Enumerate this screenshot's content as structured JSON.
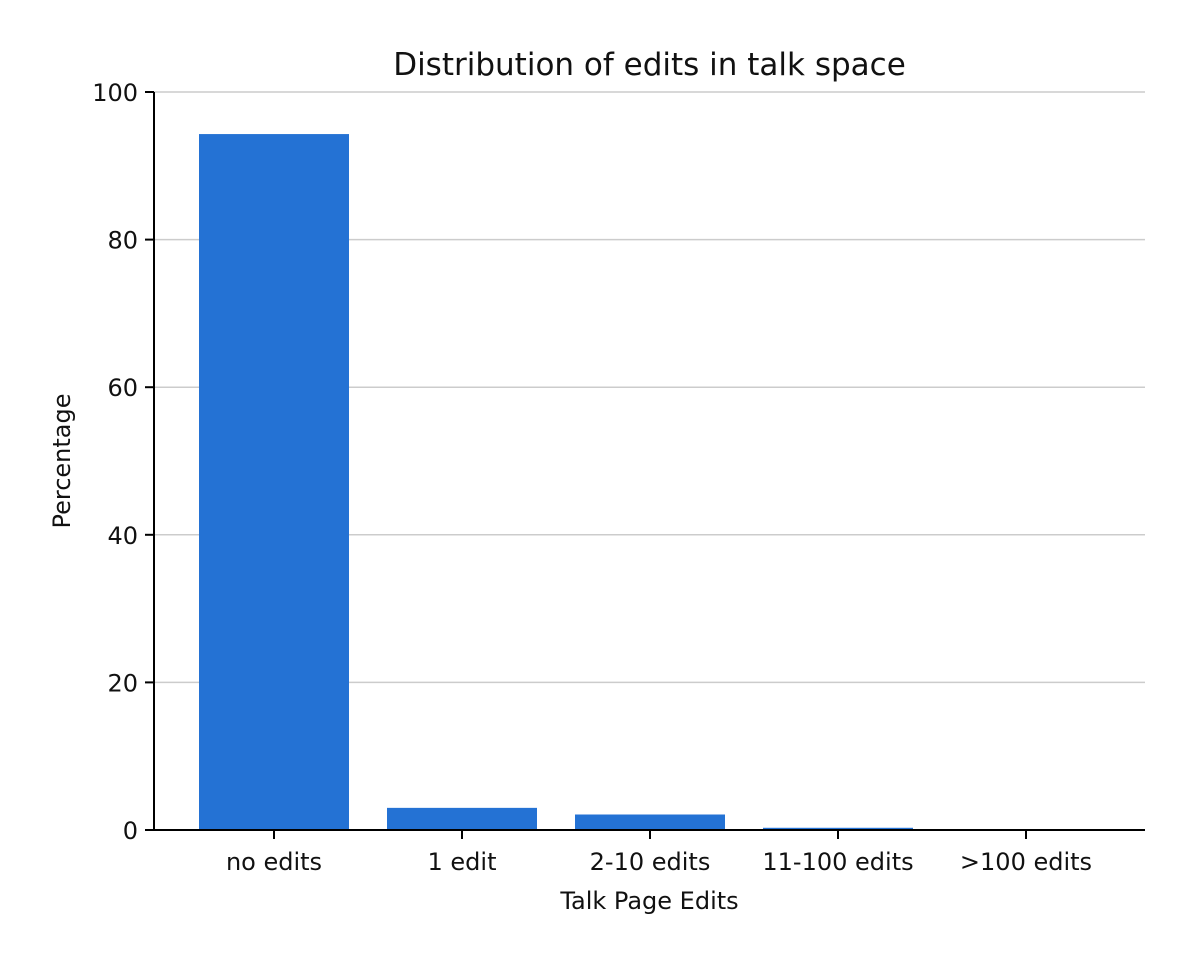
{
  "chart_data": {
    "type": "bar",
    "title": "Distribution of edits in talk space",
    "xlabel": "Talk Page Edits",
    "ylabel": "Percentage",
    "categories": [
      "no edits",
      "1 edit",
      "2-10 edits",
      "11-100 edits",
      ">100 edits"
    ],
    "values": [
      94.3,
      3.0,
      2.1,
      0.3,
      0.05
    ],
    "ylim": [
      0,
      100
    ],
    "yticks": [
      0,
      20,
      40,
      60,
      80,
      100
    ],
    "bar_color": "#2472d4",
    "grid": "horizontal",
    "legend": "none"
  }
}
